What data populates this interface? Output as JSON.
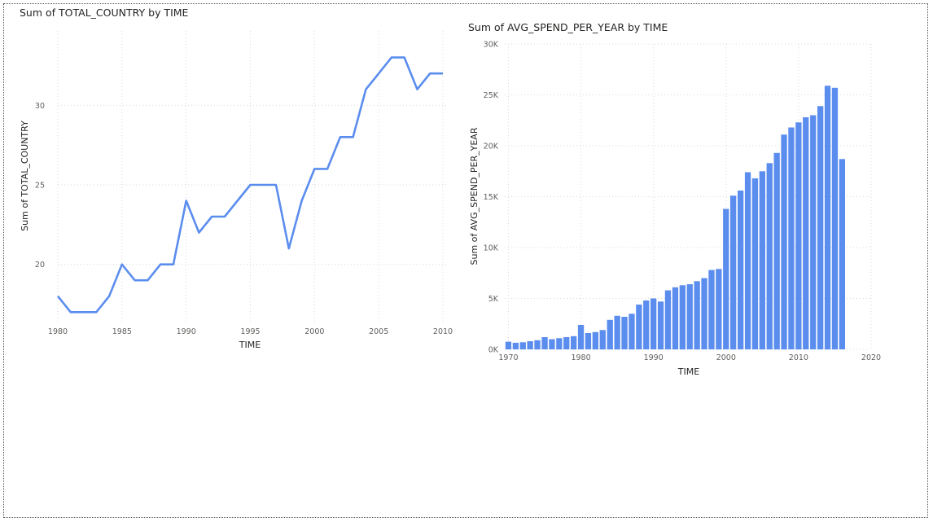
{
  "charts": [
    {
      "id": "line",
      "chart_data": {
        "type": "line",
        "title": "Sum of TOTAL_COUNTRY by TIME",
        "xlabel": "TIME",
        "ylabel": "Sum of TOTAL_COUNTRY",
        "x": [
          1980,
          1981,
          1982,
          1983,
          1984,
          1985,
          1986,
          1987,
          1988,
          1989,
          1990,
          1991,
          1992,
          1993,
          1994,
          1995,
          1996,
          1997,
          1998,
          1999,
          2000,
          2001,
          2002,
          2003,
          2004,
          2005,
          2006,
          2007,
          2008,
          2009,
          2010
        ],
        "series": [
          {
            "values": [
              18,
              17,
              17,
              17,
              18,
              20,
              19,
              19,
              20,
              20,
              24,
              22,
              23,
              23,
              24,
              25,
              25,
              25,
              21,
              24,
              26,
              26,
              28,
              28,
              31,
              32,
              33,
              33,
              31,
              32,
              32
            ]
          }
        ],
        "xlim": [
          1980,
          2010
        ],
        "ylim": [
          16.4,
          33.8
        ],
        "xticks": [
          "1980",
          "1985",
          "1990",
          "1995",
          "2000",
          "2005",
          "2010"
        ],
        "yticks": [
          "20",
          "25",
          "30"
        ],
        "grid": true,
        "color": "#5b8def"
      }
    },
    {
      "id": "bar",
      "chart_data": {
        "type": "bar",
        "title": "Sum of AVG_SPEND_PER_YEAR by TIME",
        "xlabel": "TIME",
        "ylabel": "Sum of AVG_SPEND_PER_YEAR",
        "x": [
          1970,
          1971,
          1972,
          1973,
          1974,
          1975,
          1976,
          1977,
          1978,
          1979,
          1980,
          1981,
          1982,
          1983,
          1984,
          1985,
          1986,
          1987,
          1988,
          1989,
          1990,
          1991,
          1992,
          1993,
          1994,
          1995,
          1996,
          1997,
          1998,
          1999,
          2000,
          2001,
          2002,
          2003,
          2004,
          2005,
          2006,
          2007,
          2008,
          2009,
          2010,
          2011,
          2012,
          2013,
          2014,
          2015,
          2016
        ],
        "values": [
          750,
          650,
          700,
          800,
          900,
          1200,
          1000,
          1100,
          1200,
          1300,
          2400,
          1600,
          1700,
          1900,
          2900,
          3300,
          3200,
          3500,
          4400,
          4800,
          5000,
          4700,
          5800,
          6100,
          6300,
          6400,
          6700,
          7000,
          7800,
          7900,
          13800,
          15100,
          15600,
          17400,
          16800,
          17500,
          18300,
          19300,
          21100,
          21800,
          22300,
          22800,
          23000,
          23900,
          25900,
          25700,
          18700
        ],
        "xlim": [
          1969.5,
          2020
        ],
        "ylim": [
          0,
          30000
        ],
        "xticks": [
          "1970",
          "1980",
          "1990",
          "2000",
          "2010",
          "2020"
        ],
        "yticks": [
          "0K",
          "5K",
          "10K",
          "15K",
          "20K",
          "25K",
          "30K"
        ],
        "grid": true,
        "color": "#5b8def"
      }
    }
  ]
}
